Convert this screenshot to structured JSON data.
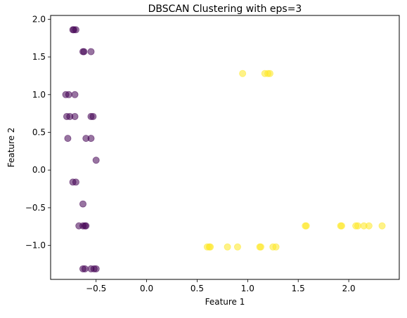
{
  "chart_data": {
    "type": "scatter",
    "title": "DBSCAN Clustering with eps=3",
    "xlabel": "Feature 1",
    "ylabel": "Feature 2",
    "xlim": [
      -0.95,
      2.5
    ],
    "ylim": [
      -1.45,
      2.05
    ],
    "xticks": [
      {
        "value": -0.5,
        "label": "−0.5"
      },
      {
        "value": 0.0,
        "label": "0.0"
      },
      {
        "value": 0.5,
        "label": "0.5"
      },
      {
        "value": 1.0,
        "label": "1.0"
      },
      {
        "value": 1.5,
        "label": "1.5"
      },
      {
        "value": 2.0,
        "label": "2.0"
      }
    ],
    "yticks": [
      {
        "value": -1.0,
        "label": "−1.0"
      },
      {
        "value": -0.5,
        "label": "−0.5"
      },
      {
        "value": 0.0,
        "label": "0.0"
      },
      {
        "value": 0.5,
        "label": "0.5"
      },
      {
        "value": 1.0,
        "label": "1.0"
      },
      {
        "value": 1.5,
        "label": "1.5"
      },
      {
        "value": 2.0,
        "label": "2.0"
      }
    ],
    "grid": false,
    "legend": false,
    "marker_alpha": 0.55,
    "clusters": [
      {
        "color": "#440154",
        "points": [
          [
            -0.72,
            1.86
          ],
          [
            -0.7,
            1.86
          ],
          [
            -0.73,
            1.86
          ],
          [
            -0.62,
            1.57
          ],
          [
            -0.55,
            1.57
          ],
          [
            -0.63,
            1.57
          ],
          [
            -0.8,
            1.0
          ],
          [
            -0.77,
            1.0
          ],
          [
            -0.71,
            1.0
          ],
          [
            -0.79,
            0.71
          ],
          [
            -0.76,
            0.71
          ],
          [
            -0.71,
            0.71
          ],
          [
            -0.55,
            0.71
          ],
          [
            -0.53,
            0.71
          ],
          [
            -0.78,
            0.42
          ],
          [
            -0.6,
            0.42
          ],
          [
            -0.55,
            0.42
          ],
          [
            -0.5,
            0.13
          ],
          [
            -0.73,
            -0.16
          ],
          [
            -0.7,
            -0.16
          ],
          [
            -0.63,
            -0.45
          ],
          [
            -0.67,
            -0.74
          ],
          [
            -0.63,
            -0.74
          ],
          [
            -0.61,
            -0.74
          ],
          [
            -0.6,
            -0.74
          ],
          [
            -0.63,
            -1.31
          ],
          [
            -0.61,
            -1.31
          ],
          [
            -0.55,
            -1.31
          ],
          [
            -0.52,
            -1.31
          ],
          [
            -0.5,
            -1.31
          ]
        ]
      },
      {
        "color": "#fde725",
        "points": [
          [
            0.95,
            1.28
          ],
          [
            1.17,
            1.28
          ],
          [
            1.2,
            1.28
          ],
          [
            1.22,
            1.28
          ],
          [
            0.6,
            -1.02
          ],
          [
            0.62,
            -1.02
          ],
          [
            0.63,
            -1.02
          ],
          [
            0.8,
            -1.02
          ],
          [
            0.9,
            -1.02
          ],
          [
            1.12,
            -1.02
          ],
          [
            1.13,
            -1.02
          ],
          [
            1.25,
            -1.02
          ],
          [
            1.28,
            -1.02
          ],
          [
            1.57,
            -0.74
          ],
          [
            1.58,
            -0.74
          ],
          [
            1.92,
            -0.74
          ],
          [
            1.93,
            -0.74
          ],
          [
            2.07,
            -0.74
          ],
          [
            2.09,
            -0.74
          ],
          [
            2.15,
            -0.74
          ],
          [
            2.2,
            -0.74
          ],
          [
            2.33,
            -0.74
          ]
        ]
      }
    ]
  }
}
